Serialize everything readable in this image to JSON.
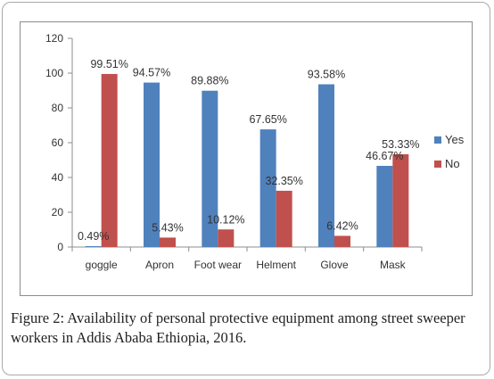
{
  "caption": {
    "label": "Figure 2:",
    "text": " Availability of personal protective equipment among street sweeper workers in Addis Ababa Ethiopia, 2016."
  },
  "chart_data": {
    "type": "bar",
    "categories": [
      "goggle",
      "Apron",
      "Foot wear",
      "Helment",
      "Glove",
      "Mask"
    ],
    "series": [
      {
        "name": "Yes",
        "color": "#4f81bd",
        "values": [
          0.49,
          94.57,
          89.88,
          67.65,
          93.58,
          46.67
        ],
        "labels": [
          "0.49%",
          "94.57%",
          "89.88%",
          "67.65%",
          "93.58%",
          "46.67%"
        ]
      },
      {
        "name": "No",
        "color": "#c0504d",
        "values": [
          99.51,
          5.43,
          10.12,
          32.35,
          6.42,
          53.33
        ],
        "labels": [
          "99.51%",
          "5.43%",
          "10.12%",
          "32.35%",
          "6.42%",
          "53.33%"
        ]
      }
    ],
    "yticks": [
      "0",
      "20",
      "40",
      "60",
      "80",
      "100",
      "120"
    ],
    "ylim": [
      0,
      120
    ],
    "grid": false,
    "legend_position": "right"
  }
}
